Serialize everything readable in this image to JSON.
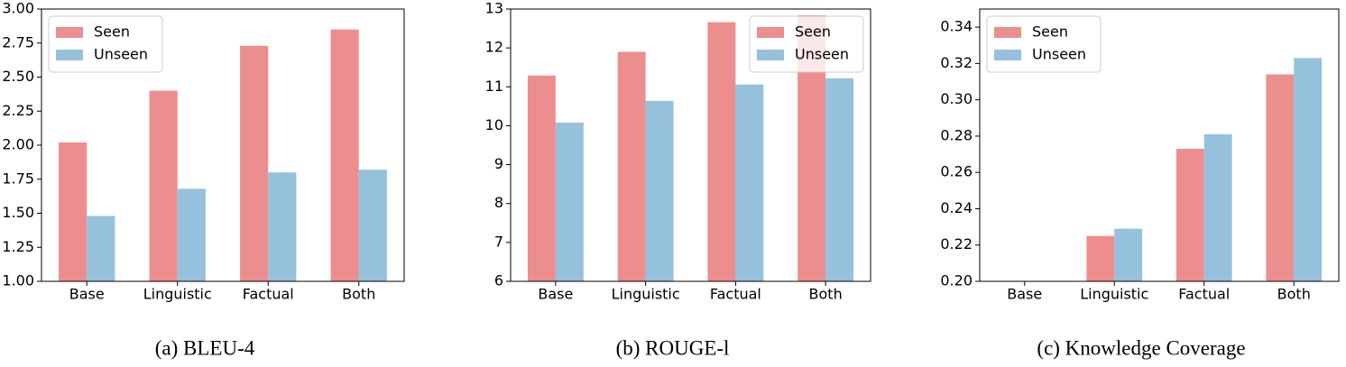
{
  "chart_data": [
    {
      "type": "bar",
      "caption": "(a) BLEU-4",
      "categories": [
        "Base",
        "Linguistic",
        "Factual",
        "Both"
      ],
      "series": [
        {
          "name": "Seen",
          "color": "#eb8e8d",
          "values": [
            2.02,
            2.4,
            2.73,
            2.85
          ]
        },
        {
          "name": "Unseen",
          "color": "#95c1dc",
          "values": [
            1.48,
            1.68,
            1.8,
            1.82
          ]
        }
      ],
      "ylim": [
        1.0,
        3.0
      ],
      "yticks": [
        {
          "value": 1.0,
          "label": "1.00"
        },
        {
          "value": 1.25,
          "label": "1.25"
        },
        {
          "value": 1.5,
          "label": "1.50"
        },
        {
          "value": 1.75,
          "label": "1.75"
        },
        {
          "value": 2.0,
          "label": "2.00"
        },
        {
          "value": 2.25,
          "label": "2.25"
        },
        {
          "value": 2.5,
          "label": "2.50"
        },
        {
          "value": 2.75,
          "label": "2.75"
        },
        {
          "value": 3.0,
          "label": "3.00"
        }
      ],
      "legend": "upper left"
    },
    {
      "type": "bar",
      "caption": "(b) ROUGE-l",
      "categories": [
        "Base",
        "Linguistic",
        "Factual",
        "Both"
      ],
      "series": [
        {
          "name": "Seen",
          "color": "#eb8e8d",
          "values": [
            11.29,
            11.9,
            12.66,
            12.84
          ]
        },
        {
          "name": "Unseen",
          "color": "#95c1dc",
          "values": [
            10.08,
            10.64,
            11.06,
            11.22
          ]
        }
      ],
      "ylim": [
        6,
        13
      ],
      "yticks": [
        6,
        7,
        8,
        9,
        10,
        11,
        12,
        13
      ],
      "legend": "upper right"
    },
    {
      "type": "bar",
      "caption": "(c) Knowledge Coverage",
      "categories": [
        "Base",
        "Linguistic",
        "Factual",
        "Both"
      ],
      "series": [
        {
          "name": "Seen",
          "color": "#eb8e8d",
          "values": [
            0.2,
            0.225,
            0.273,
            0.314
          ]
        },
        {
          "name": "Unseen",
          "color": "#95c1dc",
          "values": [
            0.2,
            0.229,
            0.281,
            0.323
          ]
        }
      ],
      "ylim": [
        0.2,
        0.35
      ],
      "yticks": [
        {
          "value": 0.2,
          "label": "0.20"
        },
        {
          "value": 0.22,
          "label": "0.22"
        },
        {
          "value": 0.24,
          "label": "0.24"
        },
        {
          "value": 0.26,
          "label": "0.26"
        },
        {
          "value": 0.28,
          "label": "0.28"
        },
        {
          "value": 0.3,
          "label": "0.30"
        },
        {
          "value": 0.32,
          "label": "0.32"
        },
        {
          "value": 0.34,
          "label": "0.34"
        }
      ],
      "legend": "upper left"
    }
  ]
}
